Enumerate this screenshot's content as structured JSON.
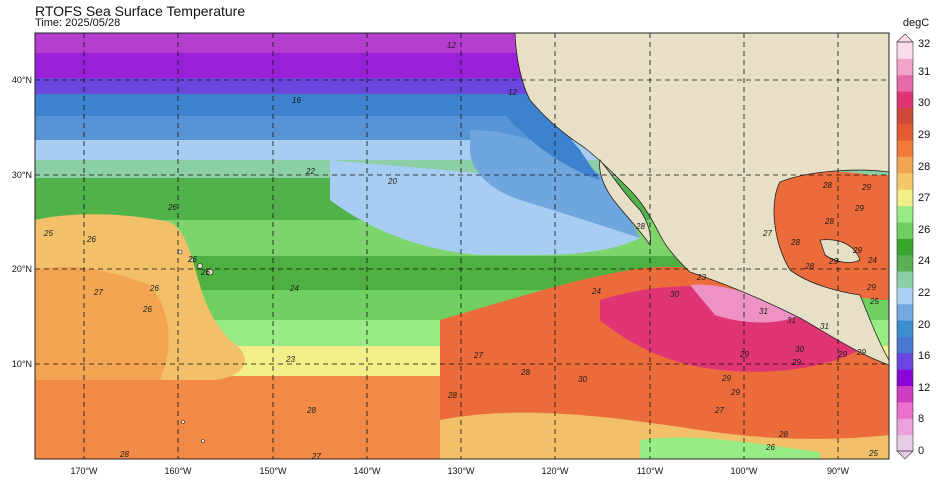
{
  "title": "RTOFS Sea Surface Temperature",
  "time_label": "Time: 2025/05/28",
  "colorbar": {
    "unit": "degC",
    "ticks": [
      "0",
      "2",
      "6",
      "8",
      "12",
      "16",
      "20",
      "22",
      "24",
      "26",
      "27",
      "28",
      "29",
      "30",
      "31",
      "32"
    ],
    "colors": [
      "#e8cbe6",
      "#eea0de",
      "#ea6fcf",
      "#cd3ec0",
      "#8a05d6",
      "#6a45de",
      "#4a78d0",
      "#3c8ecf",
      "#74a8df",
      "#aad0f3",
      "#8ccfa6",
      "#5bb055",
      "#3aa62e",
      "#6fcf60",
      "#98ec86",
      "#f2ee88",
      "#f4c86a",
      "#f3a452",
      "#f17b3a",
      "#e45a33",
      "#ce4a3a",
      "#e03574",
      "#e669aa",
      "#f2a3c8",
      "#fcdcea"
    ]
  },
  "map": {
    "lat_labels": [
      "40°N",
      "30°N",
      "20°N",
      "10°N"
    ],
    "lon_labels": [
      "170°W",
      "160°W",
      "150°W",
      "140°W",
      "130°W",
      "120°W",
      "110°W",
      "100°W",
      "90°W"
    ],
    "land_color": "#e8e0c6",
    "contour_labels": [
      {
        "text": "12"
      },
      {
        "text": "12"
      },
      {
        "text": "16"
      },
      {
        "text": "22"
      },
      {
        "text": "20"
      },
      {
        "text": "26"
      },
      {
        "text": "25"
      },
      {
        "text": "26"
      },
      {
        "text": "26"
      },
      {
        "text": "26"
      },
      {
        "text": "27"
      },
      {
        "text": "26"
      },
      {
        "text": "26"
      },
      {
        "text": "24"
      },
      {
        "text": "24"
      },
      {
        "text": "23"
      },
      {
        "text": "28"
      },
      {
        "text": "27"
      },
      {
        "text": "28"
      },
      {
        "text": "28"
      },
      {
        "text": "30"
      },
      {
        "text": "28"
      },
      {
        "text": "28"
      },
      {
        "text": "27"
      },
      {
        "text": "30"
      },
      {
        "text": "31"
      },
      {
        "text": "31"
      },
      {
        "text": "31"
      },
      {
        "text": "29"
      },
      {
        "text": "30"
      },
      {
        "text": "29"
      },
      {
        "text": "29"
      },
      {
        "text": "29"
      },
      {
        "text": "27"
      },
      {
        "text": "26"
      },
      {
        "text": "28"
      },
      {
        "text": "25"
      },
      {
        "text": "29"
      },
      {
        "text": "29"
      },
      {
        "text": "28"
      },
      {
        "text": "29"
      },
      {
        "text": "28"
      },
      {
        "text": "27"
      },
      {
        "text": "29"
      },
      {
        "text": "29"
      },
      {
        "text": "29"
      },
      {
        "text": "28"
      },
      {
        "text": "25"
      },
      {
        "text": "28"
      },
      {
        "text": "29"
      },
      {
        "text": "24"
      },
      {
        "text": "23"
      }
    ]
  }
}
